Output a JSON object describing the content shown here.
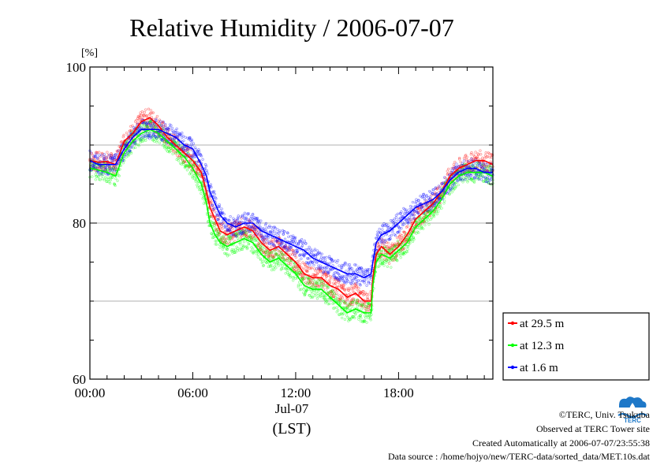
{
  "chart_data": {
    "type": "line",
    "title": "Relative Humidity / 2006-07-07",
    "ylabel": "[%]",
    "xlabel": "(LST)",
    "xlim": [
      0,
      23.5
    ],
    "ylim": [
      60,
      100
    ],
    "x_ticks": [
      "00:00",
      "06:00",
      "12:00",
      "18:00"
    ],
    "x_tick_hours": [
      0,
      6,
      12,
      18
    ],
    "x_date_label": "Jul-07",
    "y_ticks": [
      60,
      80,
      100
    ],
    "grid": "horizontal",
    "legend_position": "bottom-right",
    "series": [
      {
        "name": "at 29.5 m",
        "color": "#ff0000",
        "x": [
          0,
          0.5,
          1.0,
          1.5,
          2.0,
          2.5,
          3.0,
          3.5,
          4.0,
          4.5,
          5.0,
          5.5,
          6.0,
          6.5,
          6.8,
          7.0,
          7.3,
          7.6,
          8.0,
          8.5,
          9.0,
          9.5,
          10.0,
          10.5,
          11.0,
          11.5,
          12.0,
          12.5,
          13.0,
          13.5,
          14.0,
          14.5,
          15.0,
          15.5,
          16.0,
          16.4,
          16.5,
          16.7,
          17.0,
          17.5,
          18.0,
          18.5,
          19.0,
          19.5,
          20.0,
          20.5,
          21.0,
          21.5,
          22.0,
          22.5,
          23.0,
          23.5
        ],
        "y": [
          88.0,
          87.8,
          87.9,
          87.5,
          90.5,
          91.5,
          93.0,
          93.5,
          92.5,
          91.0,
          90.0,
          89.0,
          88.0,
          86.5,
          84.0,
          82.0,
          80.5,
          79.0,
          78.5,
          79.0,
          79.5,
          79.0,
          77.5,
          76.5,
          77.0,
          76.0,
          75.0,
          73.5,
          73.0,
          73.0,
          72.0,
          71.5,
          70.5,
          71.0,
          70.0,
          70.0,
          73.0,
          76.0,
          77.0,
          76.0,
          77.0,
          78.5,
          80.5,
          81.5,
          82.5,
          84.0,
          86.0,
          87.0,
          87.5,
          88.0,
          88.0,
          87.5
        ]
      },
      {
        "name": "at 12.3 m",
        "color": "#00ff00",
        "x": [
          0,
          0.5,
          1.0,
          1.5,
          2.0,
          2.5,
          3.0,
          3.5,
          4.0,
          4.5,
          5.0,
          5.5,
          6.0,
          6.5,
          6.8,
          7.0,
          7.3,
          7.6,
          8.0,
          8.5,
          9.0,
          9.5,
          10.0,
          10.5,
          11.0,
          11.5,
          12.0,
          12.5,
          13.0,
          13.5,
          14.0,
          14.5,
          15.0,
          15.5,
          16.0,
          16.4,
          16.5,
          16.7,
          17.0,
          17.5,
          18.0,
          18.5,
          19.0,
          19.5,
          20.0,
          20.5,
          21.0,
          21.5,
          22.0,
          22.5,
          23.0,
          23.5
        ],
        "y": [
          87.0,
          86.8,
          86.5,
          86.0,
          89.0,
          90.5,
          91.5,
          92.0,
          91.5,
          90.5,
          89.5,
          88.5,
          87.0,
          85.0,
          82.5,
          80.0,
          78.5,
          77.5,
          77.0,
          77.5,
          78.0,
          77.5,
          76.0,
          75.0,
          75.5,
          74.5,
          73.5,
          72.0,
          71.5,
          71.5,
          70.5,
          69.5,
          68.5,
          69.0,
          68.5,
          68.5,
          72.0,
          75.0,
          76.0,
          75.5,
          76.5,
          77.5,
          79.5,
          80.5,
          81.5,
          83.0,
          85.0,
          86.0,
          86.5,
          86.5,
          86.5,
          86.0
        ]
      },
      {
        "name": "at 1.6 m",
        "color": "#0000ff",
        "x": [
          0,
          0.5,
          1.0,
          1.5,
          2.0,
          2.5,
          3.0,
          3.5,
          4.0,
          4.5,
          5.0,
          5.5,
          6.0,
          6.5,
          6.8,
          7.0,
          7.3,
          7.6,
          8.0,
          8.5,
          9.0,
          9.5,
          10.0,
          10.5,
          11.0,
          11.5,
          12.0,
          12.5,
          13.0,
          13.5,
          14.0,
          14.5,
          15.0,
          15.5,
          16.0,
          16.4,
          16.5,
          16.7,
          17.0,
          17.5,
          18.0,
          18.5,
          19.0,
          19.5,
          20.0,
          20.5,
          21.0,
          21.5,
          22.0,
          22.5,
          23.0,
          23.5
        ],
        "y": [
          88.0,
          87.5,
          87.5,
          87.5,
          89.5,
          91.0,
          92.0,
          92.0,
          92.0,
          91.5,
          91.0,
          90.0,
          89.5,
          87.5,
          86.0,
          84.0,
          82.5,
          81.0,
          80.0,
          79.5,
          80.0,
          80.0,
          79.0,
          78.5,
          78.0,
          77.5,
          77.0,
          76.5,
          75.5,
          75.0,
          74.5,
          74.0,
          73.5,
          73.5,
          73.0,
          73.5,
          75.0,
          77.5,
          78.5,
          79.0,
          80.0,
          81.0,
          82.0,
          82.5,
          83.0,
          84.0,
          85.5,
          86.5,
          87.0,
          87.0,
          86.5,
          86.5
        ]
      }
    ]
  },
  "footer": {
    "copyright": "©TERC, Univ. Tsukuba",
    "observed": "Observed at TERC Tower site",
    "created": "Created Automatically at 2006-07-07/23:55:38",
    "source": "Data source : /home/hojyo/new/TERC-data/sorted_data/MET.10s.dat"
  },
  "logo": {
    "text": "TERC",
    "color": "#1e78c8"
  }
}
